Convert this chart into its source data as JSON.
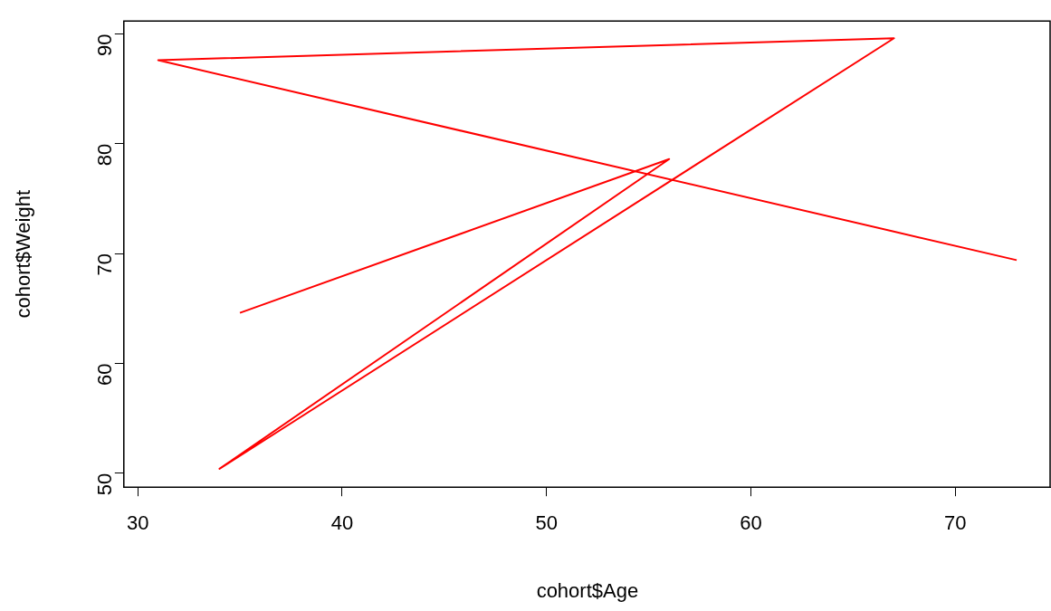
{
  "chart_data": {
    "type": "line",
    "xlabel": "cohort$Age",
    "ylabel": "cohort$Weight",
    "x": [
      35,
      56,
      34,
      67,
      31,
      73
    ],
    "series": [
      {
        "color": "#ff0000",
        "values": [
          64.6,
          78.6,
          50.4,
          89.6,
          87.6,
          69.4
        ]
      }
    ],
    "xlim": [
      29.32,
      74.68
    ],
    "xticks": [
      30,
      40,
      50,
      60,
      70
    ],
    "ylim": [
      48.73,
      91.17
    ],
    "yticks": [
      50,
      60,
      70,
      80,
      90
    ],
    "grid": false,
    "legend": false,
    "marker": "none",
    "line_style": "solid"
  }
}
